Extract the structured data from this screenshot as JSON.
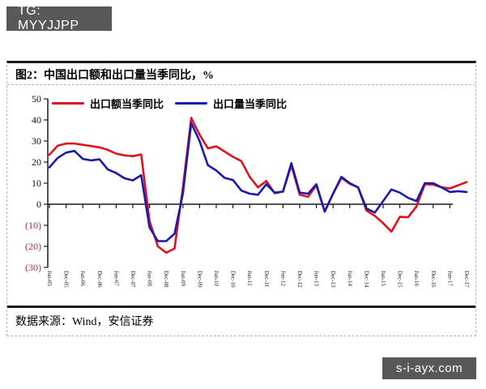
{
  "header_badge": {
    "label": "TG: MYYJJPP"
  },
  "watermark_badge": {
    "label": "s-i-ayx.com"
  },
  "figure": {
    "title": "图2：中国出口额和出口量当季同比，%",
    "source": "数据来源：Wind，安信证券"
  },
  "chart_data": {
    "type": "line",
    "title": "图2：中国出口额和出口量当季同比，%",
    "xlabel": "",
    "ylabel": "%",
    "ylim": [
      -30,
      50
    ],
    "grid": false,
    "legend_position": "top-inside",
    "axis_color": "#1a1a1a",
    "negative_tick_color": "#b03030",
    "y_ticks": [
      {
        "value": 50,
        "label": "50"
      },
      {
        "value": 40,
        "label": "40"
      },
      {
        "value": 30,
        "label": "30"
      },
      {
        "value": 20,
        "label": "20"
      },
      {
        "value": 10,
        "label": "10"
      },
      {
        "value": 0,
        "label": "0"
      },
      {
        "value": -10,
        "label": "(10)"
      },
      {
        "value": -20,
        "label": "(20)"
      },
      {
        "value": -30,
        "label": "(30)"
      }
    ],
    "x_label_step": 2,
    "x_labels": [
      "Jun-05",
      "Dec-05",
      "Jun-06",
      "Dec-06",
      "Jun-07",
      "Dec-07",
      "Jun-08",
      "Dec-08",
      "Jun-09",
      "Dec-09",
      "Jun-10",
      "Dec-10",
      "Jun-11",
      "Dec-11",
      "Jun-12",
      "Dec-12",
      "Jun-13",
      "Dec-13",
      "Jun-14",
      "Dec-14",
      "Jun-15",
      "Dec-15",
      "Jun-16",
      "Dec-16",
      "Jun-17",
      "Dec-17"
    ],
    "series": [
      {
        "name": "出口额当季同比",
        "color": "#dd1120",
        "values": [
          23.5,
          27.8,
          28.8,
          28.8,
          28.2,
          27.6,
          27.0,
          25.8,
          24.0,
          23.2,
          22.8,
          23.6,
          -8,
          -20,
          -23,
          -21,
          8,
          41,
          33,
          26.5,
          27.5,
          25,
          22.5,
          20.5,
          13,
          8,
          11,
          5.2,
          6,
          18.5,
          4.5,
          3.5,
          9,
          -3.5,
          5,
          12.5,
          9.7,
          8,
          -3,
          -5.5,
          -9,
          -13,
          -6,
          -6.2,
          -1,
          9.5,
          9.3,
          8,
          7.5,
          9,
          10.5
        ]
      },
      {
        "name": "出口量当季同比",
        "color": "#1a1aad",
        "values": [
          17.5,
          22,
          24.5,
          25.3,
          21.5,
          20.8,
          21.3,
          16.5,
          14.8,
          12.3,
          11.3,
          13.8,
          -11,
          -17.5,
          -17.5,
          -14,
          5,
          38.5,
          30,
          18.5,
          16,
          12.5,
          11.5,
          6.5,
          5,
          4.5,
          9.5,
          5.5,
          6,
          19.5,
          5.5,
          5,
          9.5,
          -3.5,
          5,
          13,
          10,
          8,
          -2,
          -4,
          1.5,
          7,
          5.5,
          3,
          1.5,
          10,
          10,
          8,
          5.8,
          6.2,
          5.8
        ]
      }
    ]
  }
}
